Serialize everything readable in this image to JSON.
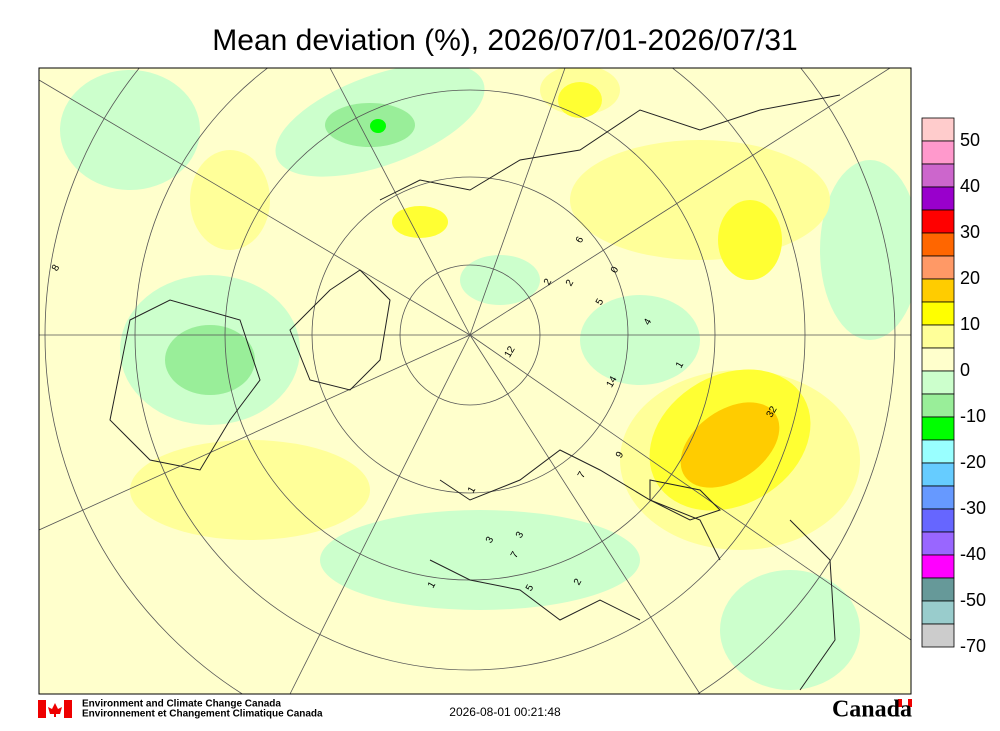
{
  "header": {
    "title": "Mean deviation (%), 2026/07/01-2026/07/31"
  },
  "colorbar": {
    "labels": [
      50,
      40,
      30,
      20,
      10,
      0,
      -10,
      -20,
      -30,
      -40,
      -50,
      -70
    ],
    "colors": [
      "#ffcccc",
      "#ff99cc",
      "#cc66cc",
      "#9900cc",
      "#ff0000",
      "#ff6600",
      "#ff9966",
      "#ffcc00",
      "#ffff00",
      "#ffff99",
      "#ffffcc",
      "#ccffcc",
      "#99ee99",
      "#00ff00",
      "#99ffff",
      "#66ccff",
      "#6699ff",
      "#6666ff",
      "#9966ff",
      "#ff00ff",
      "#669999",
      "#99cccc",
      "#cccccc"
    ]
  },
  "stations": [
    "32",
    "14",
    "12",
    "9",
    "8",
    "7",
    "5",
    "4",
    "3",
    "2",
    "1",
    "0",
    "6",
    "2",
    "3",
    "7",
    "1",
    "5",
    "2",
    "1"
  ],
  "footer": {
    "agency_en": "Environment and Climate Change Canada",
    "agency_fr": "Environnement et Changement Climatique Canada",
    "timestamp": "2026-08-01 00:21:48",
    "wordmark": "Canada"
  }
}
